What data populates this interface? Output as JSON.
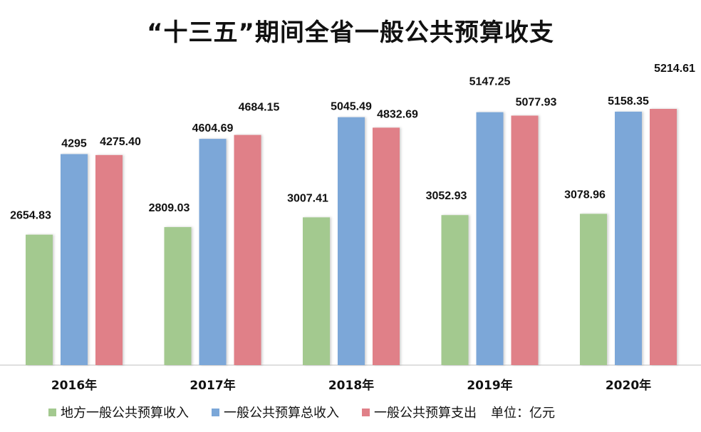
{
  "chart_data": {
    "type": "bar",
    "title": "“十三五”期间全省一般公共预算收支",
    "categories": [
      "2016年",
      "2017年",
      "2018年",
      "2019年",
      "2020年"
    ],
    "series": [
      {
        "name": "地方一般公共预算收入",
        "color": "#a3c98f",
        "values": [
          2654.83,
          2809.03,
          3007.41,
          3052.93,
          3078.96
        ],
        "labels": [
          "2654.83",
          "2809.03",
          "3007.41",
          "3052.93",
          "3078.96"
        ]
      },
      {
        "name": "一般公共预算总收入",
        "color": "#7ba7d8",
        "values": [
          4295,
          4604.69,
          5045.49,
          5147.25,
          5158.35
        ],
        "labels": [
          "4295",
          "4604.69",
          "5045.49",
          "5147.25",
          "5158.35"
        ]
      },
      {
        "name": "一般公共预算支出",
        "color": "#e08088",
        "values": [
          4275.4,
          4684.15,
          4832.69,
          5077.93,
          5214.61
        ],
        "labels": [
          "4275.40",
          "4684.15",
          "4832.69",
          "5077.93",
          "5214.61"
        ]
      }
    ],
    "unit": "单位：亿元",
    "ylim": [
      0,
      6000
    ],
    "grid": false,
    "legend_position": "bottom"
  }
}
